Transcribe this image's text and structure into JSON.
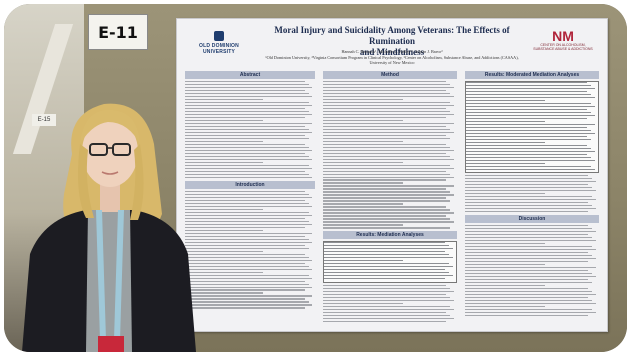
{
  "booth_label": "E-11",
  "booth_sign": "E-15",
  "poster": {
    "title_line1": "Moral Injury and Suicidality Among Veterans: The Effects of Rumination",
    "title_line2": "and Mindfulness",
    "authors": "Hannah C. Hamrick¹, Michelle L. Kelley¹², Adrian J. Bravo³",
    "affiliations": "¹Old Dominion University, ²Virginia Consortium Program in Clinical Psychology, ³Center on Alcoholism, Substance Abuse, and Addictions (CASAA), University of New Mexico",
    "logo_left": "OLD DOMINION UNIVERSITY",
    "logo_right_mark": "NM",
    "logo_right_text": "CENTER ON ALCOHOLISM, SUBSTANCE ABUSE & ADDICTIONS",
    "sections": {
      "col1": [
        "Abstract",
        "Introduction"
      ],
      "col2": [
        "Method",
        "Results: Mediation Analyses"
      ],
      "col3": [
        "Results: Moderated Mediation Analyses",
        "Discussion"
      ]
    }
  },
  "colors": {
    "board": "#8c8468",
    "poster_bg": "#f2f2f4",
    "section_head": "#b8bfcf",
    "title": "#1d2c4f",
    "lanyard": "#9fc8d8"
  }
}
